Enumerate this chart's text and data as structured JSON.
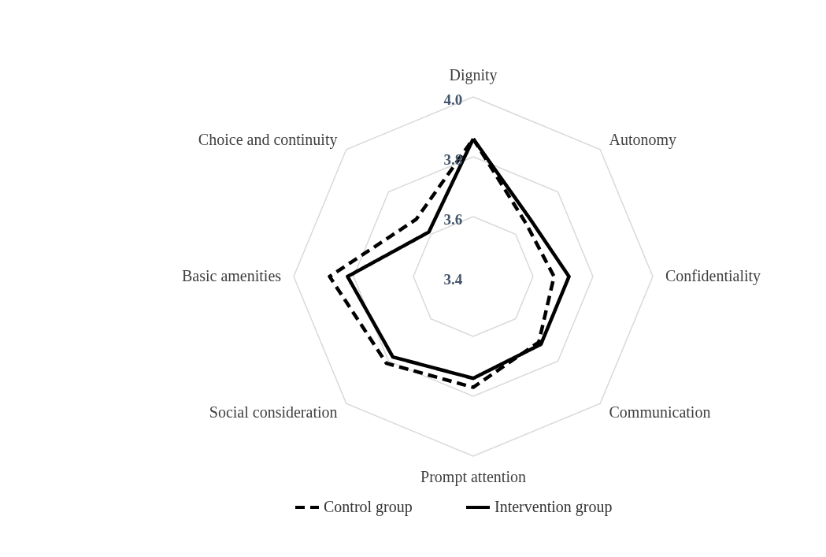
{
  "chart_data": {
    "type": "radar",
    "categories": [
      "Dignity",
      "Autonomy",
      "Confidentiality",
      "Communication",
      "Prompt attention",
      "Social consideration",
      "Basic amenities",
      "Choice and continuity"
    ],
    "series": [
      {
        "name": "Control group",
        "color": "#000000",
        "line_style": "dashed",
        "values": [
          3.86,
          3.65,
          3.67,
          3.71,
          3.77,
          3.81,
          3.88,
          3.67
        ]
      },
      {
        "name": "Intervention group",
        "color": "#000000",
        "line_style": "solid",
        "values": [
          3.86,
          3.67,
          3.72,
          3.72,
          3.74,
          3.78,
          3.82,
          3.61
        ]
      }
    ],
    "ylim": [
      3.4,
      4.0
    ],
    "yticks": [
      3.4,
      3.6,
      3.8,
      {
        "value": 4.0,
        "label": "4.0"
      }
    ],
    "grid": true,
    "legend": "bottom",
    "marker": "none"
  }
}
